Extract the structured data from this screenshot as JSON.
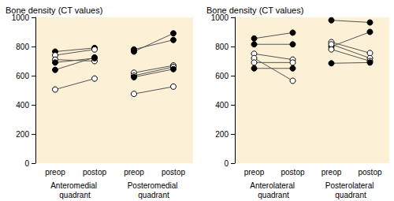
{
  "chart_data": [
    {
      "type": "line",
      "title": "Bone density (CT values)",
      "ylim": [
        0,
        1000
      ],
      "yticks": [
        0,
        200,
        400,
        600,
        800,
        1000
      ],
      "categories": [
        "preop",
        "postop"
      ],
      "groups": [
        {
          "name": "Anteromedial quadrant",
          "series": [
            {
              "marker": "filled",
              "values": [
                765,
                790
              ]
            },
            {
              "marker": "open",
              "values": [
                740,
                780
              ]
            },
            {
              "marker": "open",
              "values": [
                710,
                700
              ]
            },
            {
              "marker": "filled",
              "values": [
                690,
                720
              ]
            },
            {
              "marker": "filled",
              "values": [
                640,
                725
              ]
            },
            {
              "marker": "open",
              "values": [
                505,
                580
              ]
            }
          ]
        },
        {
          "name": "Posteromedial quadrant",
          "series": [
            {
              "marker": "filled",
              "values": [
                765,
                890
              ]
            },
            {
              "marker": "filled",
              "values": [
                780,
                845
              ]
            },
            {
              "marker": "open",
              "values": [
                620,
                670
              ]
            },
            {
              "marker": "open",
              "values": [
                600,
                660
              ]
            },
            {
              "marker": "filled",
              "values": [
                590,
                645
              ]
            },
            {
              "marker": "open",
              "values": [
                475,
                525
              ]
            }
          ]
        }
      ]
    },
    {
      "type": "line",
      "title": "Bone density (CT values)",
      "ylim": [
        0,
        1000
      ],
      "yticks": [
        0,
        200,
        400,
        600,
        800,
        1000
      ],
      "categories": [
        "preop",
        "postop"
      ],
      "groups": [
        {
          "name": "Anterolateral quadrant",
          "series": [
            {
              "marker": "filled",
              "values": [
                855,
                895
              ]
            },
            {
              "marker": "filled",
              "values": [
                815,
                815
              ]
            },
            {
              "marker": "open",
              "values": [
                750,
                710
              ]
            },
            {
              "marker": "open",
              "values": [
                720,
                565
              ]
            },
            {
              "marker": "open",
              "values": [
                690,
                690
              ]
            },
            {
              "marker": "filled",
              "values": [
                650,
                650
              ]
            }
          ]
        },
        {
          "name": "Posterolateral quadrant",
          "series": [
            {
              "marker": "filled",
              "values": [
                980,
                965
              ]
            },
            {
              "marker": "filled",
              "values": [
                800,
                900
              ]
            },
            {
              "marker": "open",
              "values": [
                830,
                755
              ]
            },
            {
              "marker": "open",
              "values": [
                815,
                720
              ]
            },
            {
              "marker": "open",
              "values": [
                780,
                700
              ]
            },
            {
              "marker": "filled",
              "values": [
                685,
                690
              ]
            }
          ]
        }
      ]
    }
  ]
}
